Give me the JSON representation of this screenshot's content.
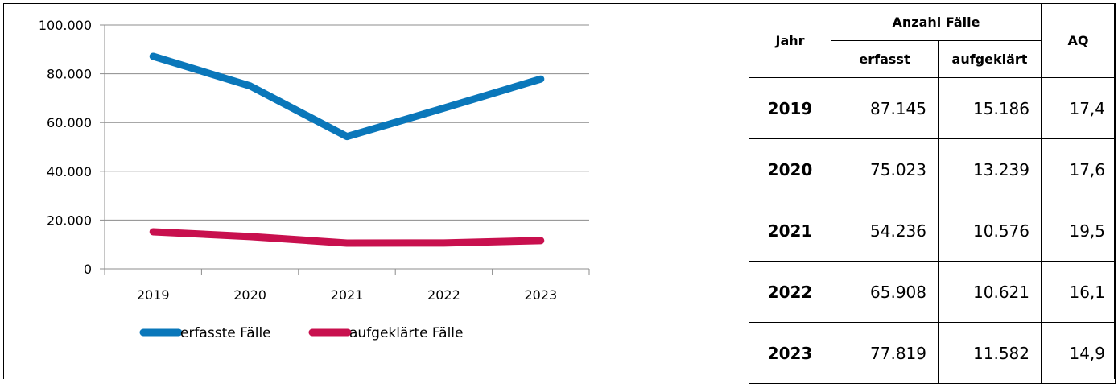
{
  "chart_data": {
    "type": "line",
    "title": "",
    "xlabel": "",
    "ylabel": "",
    "categories": [
      "2019",
      "2020",
      "2021",
      "2022",
      "2023"
    ],
    "ylim": [
      0,
      100000
    ],
    "yticks": [
      0,
      20000,
      40000,
      60000,
      80000,
      100000
    ],
    "ytick_labels": [
      "0",
      "20.000",
      "40.000",
      "60.000",
      "80.000",
      "100.000"
    ],
    "grid": true,
    "legend_placement": "bottom",
    "series": [
      {
        "name": "erfasste Fälle",
        "color": "#0a77ba",
        "values": [
          87145,
          75023,
          54236,
          65908,
          77819
        ]
      },
      {
        "name": "aufgeklärte Fälle",
        "color": "#c8104e",
        "values": [
          15186,
          13239,
          10576,
          10621,
          11582
        ]
      }
    ]
  },
  "table": {
    "headers": {
      "year": "Jahr",
      "cases_group": "Anzahl Fälle",
      "recorded": "erfasst",
      "solved": "aufgeklärt",
      "rate": "AQ"
    },
    "rows": [
      {
        "year": "2019",
        "recorded": "87.145",
        "solved": "15.186",
        "rate": "17,4"
      },
      {
        "year": "2020",
        "recorded": "75.023",
        "solved": "13.239",
        "rate": "17,6"
      },
      {
        "year": "2021",
        "recorded": "54.236",
        "solved": "10.576",
        "rate": "19,5"
      },
      {
        "year": "2022",
        "recorded": "65.908",
        "solved": "10.621",
        "rate": "16,1"
      },
      {
        "year": "2023",
        "recorded": "77.819",
        "solved": "11.582",
        "rate": "14,9"
      }
    ]
  }
}
